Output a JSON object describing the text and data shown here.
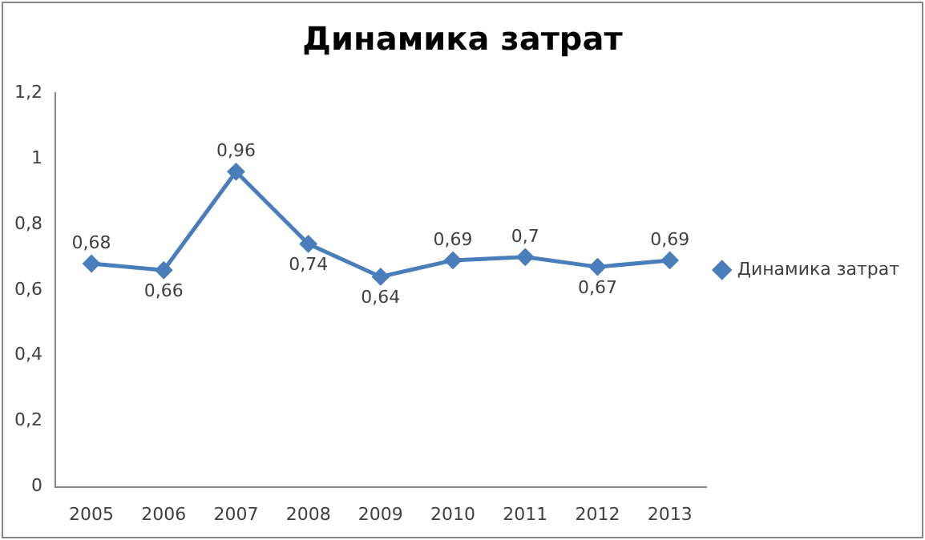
{
  "chart_data": {
    "type": "line",
    "title": "Динамика затрат",
    "categories": [
      "2005",
      "2006",
      "2007",
      "2008",
      "2009",
      "2010",
      "2011",
      "2012",
      "2013"
    ],
    "series": [
      {
        "name": "Динамика затрат",
        "color": "#4a7ebb",
        "values": [
          0.68,
          0.66,
          0.96,
          0.74,
          0.64,
          0.69,
          0.7,
          0.67,
          0.69
        ],
        "value_labels": [
          "0,68",
          "0,66",
          "0,96",
          "0,74",
          "0,64",
          "0,69",
          "0,7",
          "0,67",
          "0,69"
        ]
      }
    ],
    "ylim": [
      0,
      1.2
    ],
    "yticks": [
      0,
      {
        "value": 0.2,
        "label": "0,2"
      },
      {
        "value": 0.4,
        "label": "0,4"
      },
      {
        "value": 0.6,
        "label": "0,6"
      },
      {
        "value": 0.8,
        "label": "0,8"
      },
      1,
      {
        "value": 1.2,
        "label": "1,2"
      }
    ],
    "grid": false,
    "legend": "right",
    "marker": "diamond",
    "line_style": "solid"
  }
}
